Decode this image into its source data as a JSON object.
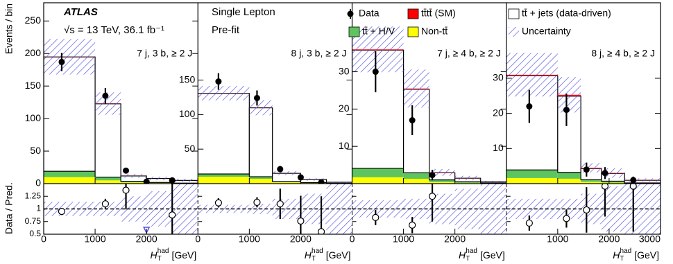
{
  "chart_data": {
    "type": "histogram",
    "annotations": {
      "experiment": "ATLAS",
      "energy": "√s = 13 TeV, 36.1 fb⁻¹",
      "channel": "Single Lepton",
      "stage": "Pre-fit"
    },
    "y_label": "Events / bin",
    "ratio_label": "Data / Pred.",
    "x_label": {
      "symbol": "H",
      "sub": "T",
      "sup": "had",
      "unit": "[GeV]"
    },
    "legend": [
      {
        "name": "Data",
        "color": "#000000"
      },
      {
        "name": "tt̄tt̄ (SM)",
        "color": "#ff0000"
      },
      {
        "name": "tt̄ + jets (data-driven)",
        "color": "#ffffff"
      },
      {
        "name": "tt̄ + H/V",
        "color": "#5ec45e"
      },
      {
        "name": "Non-tt̄",
        "color": "#ffff00"
      },
      {
        "name": "Uncertainty",
        "color": "#5050e0"
      }
    ],
    "ratio_ylim": [
      0.5,
      1.5
    ],
    "ratio_yticks": [
      0.5,
      0.75,
      1,
      1.25
    ],
    "panels": [
      {
        "label": "7 j, 3 b, ≥ 2 J",
        "xlim": [
          0,
          3000
        ],
        "xticks": [
          0,
          1000,
          2000
        ],
        "ylim": [
          0,
          278
        ],
        "yticks": [
          0,
          50,
          100,
          150,
          200,
          250
        ],
        "bins": [
          0,
          1000,
          1500,
          2000,
          2500,
          3000
        ],
        "stack_values": [
          [
            0.3,
            0.3,
            0.2,
            0.1,
            0.05
          ],
          [
            175.7,
            112.7,
            8.3,
            6.1,
            4.15
          ],
          [
            9,
            5,
            1.5,
            0.8,
            0.3
          ],
          [
            10,
            5,
            2,
            1,
            0.5
          ]
        ],
        "uncertainty": [
          0.14,
          0.14,
          0.25,
          0.35,
          0.5
        ],
        "data_x": [
          350,
          1200,
          1600,
          2000,
          2500
        ],
        "data": [
          187,
          135,
          20,
          3,
          5
        ],
        "data_errors": [
          14,
          12,
          4.5,
          1.7,
          2.2
        ],
        "ratio": [
          0.95,
          1.1,
          1.37,
          0.3,
          0.88
        ],
        "ratio_errors": [
          0.07,
          0.1,
          0.38,
          0.6,
          0.9
        ]
      },
      {
        "label": "8 j, 3 b, ≥ 2 J",
        "xlim": [
          0,
          3000
        ],
        "xticks": [
          0,
          1000,
          2000
        ],
        "ylim": [
          0,
          262
        ],
        "yticks": [
          50,
          100,
          150
        ],
        "bins": [
          0,
          1000,
          1450,
          2000,
          2500,
          3000
        ],
        "stack_values": [
          [
            0.2,
            0.2,
            0.1,
            0.05,
            0.02
          ],
          [
            116.8,
            99.8,
            11.9,
            4.45,
            1.48
          ],
          [
            4,
            3,
            1,
            0.5,
            0.2
          ],
          [
            10,
            7,
            2,
            1,
            0.3
          ]
        ],
        "uncertainty": [
          0.08,
          0.1,
          0.2,
          0.3,
          0.5
        ],
        "data_x": [
          400,
          1150,
          1600,
          2000,
          2400
        ],
        "data": [
          148,
          124,
          21,
          9,
          2
        ],
        "data_errors": [
          12,
          11,
          4.6,
          3,
          1.4
        ],
        "ratio": [
          1.12,
          1.13,
          1.1,
          0.76,
          0.55
        ],
        "ratio_errors": [
          0.09,
          0.1,
          0.3,
          0.5,
          0.7
        ]
      },
      {
        "label": "7 j, ≥ 4 b, ≥ 2 J",
        "xlim": [
          0,
          3000
        ],
        "xticks": [
          0,
          1000,
          2000
        ],
        "ylim": [
          0,
          48.5
        ],
        "yticks": [
          10,
          20,
          30
        ],
        "bins": [
          0,
          1000,
          1500,
          2000,
          2500,
          3000
        ],
        "stack_values": [
          [
            0.2,
            0.2,
            0.1,
            0.05,
            0.02
          ],
          [
            31.7,
            22.4,
            1.9,
            0.95,
            0.28
          ],
          [
            2.4,
            1.6,
            0.6,
            0.3,
            0.1
          ],
          [
            1.7,
            1.3,
            0.4,
            0.2,
            0.1
          ]
        ],
        "uncertainty": [
          0.17,
          0.2,
          0.3,
          0.4,
          0.5
        ],
        "data_x": [
          456,
          1170,
          1560
        ],
        "data": [
          30,
          17,
          2.3
        ],
        "data_errors": [
          5.5,
          4,
          1.4
        ],
        "ratio": [
          0.83,
          0.68,
          1.25
        ],
        "ratio_errors": [
          0.15,
          0.16,
          0.5
        ]
      },
      {
        "label": "8 j, ≥ 4 b, ≥ 2 J",
        "xlim": [
          0,
          3000
        ],
        "xticks": [
          1000,
          2000,
          3000
        ],
        "ylim": [
          0,
          51.5
        ],
        "yticks": [
          10,
          20,
          30
        ],
        "bins": [
          0,
          1000,
          1450,
          1850,
          2300,
          3000
        ],
        "stack_values": [
          [
            0.3,
            0.4,
            0.2,
            0.1,
            0.05
          ],
          [
            26.8,
            21.7,
            3.2,
            2.2,
            0.75
          ],
          [
            2.3,
            1.8,
            0.6,
            0.4,
            0.1
          ],
          [
            1.6,
            1.4,
            0.5,
            0.3,
            0.1
          ]
        ],
        "uncertainty": [
          0.2,
          0.2,
          0.3,
          0.45,
          0.5
        ],
        "data_x": [
          447,
          1170,
          1560,
          1920,
          2470
        ],
        "data": [
          22,
          21,
          4,
          3,
          1
        ],
        "data_errors": [
          4.7,
          4.6,
          2,
          1.7,
          1
        ],
        "ratio": [
          0.72,
          0.81,
          0.98,
          1.45,
          1.45
        ],
        "ratio_errors": [
          0.15,
          0.18,
          0.45,
          0.6,
          0.9
        ]
      }
    ]
  }
}
